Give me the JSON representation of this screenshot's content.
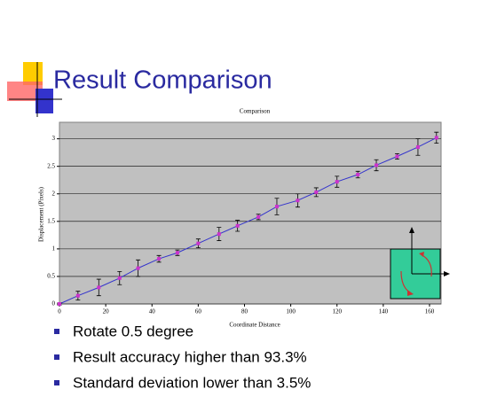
{
  "slide": {
    "title": "Result Comparison",
    "bullets": [
      "Rotate 0.5 degree",
      "Result accuracy higher than 93.3%",
      "Standard deviation lower than 3.5%"
    ]
  },
  "chart_data": {
    "type": "line",
    "title": "Comparison",
    "xlabel": "Coordinate Distance",
    "ylabel": "Displacement (Pixels)",
    "x": [
      0,
      8,
      17,
      26,
      34,
      43,
      51,
      60,
      69,
      77,
      86,
      94,
      103,
      111,
      120,
      129,
      137,
      146,
      155,
      163
    ],
    "values": [
      0,
      0.15,
      0.3,
      0.47,
      0.65,
      0.82,
      0.93,
      1.1,
      1.27,
      1.42,
      1.58,
      1.77,
      1.88,
      2.03,
      2.22,
      2.35,
      2.52,
      2.68,
      2.85,
      3.02
    ],
    "errors": [
      0.02,
      0.08,
      0.15,
      0.12,
      0.15,
      0.06,
      0.05,
      0.08,
      0.12,
      0.1,
      0.05,
      0.15,
      0.12,
      0.08,
      0.1,
      0.06,
      0.1,
      0.05,
      0.15,
      0.1
    ],
    "line_color": "#3333cc",
    "marker_color": "#cc33cc",
    "error_color": "#000000",
    "background": "#c0c0c0",
    "xlim": [
      0,
      165
    ],
    "ylim": [
      0,
      3.3
    ],
    "xticks": [
      0,
      20,
      40,
      60,
      80,
      100,
      120,
      140,
      160
    ],
    "yticks": [
      0,
      0.5,
      1,
      1.5,
      2,
      2.5,
      3
    ],
    "grid": true
  }
}
